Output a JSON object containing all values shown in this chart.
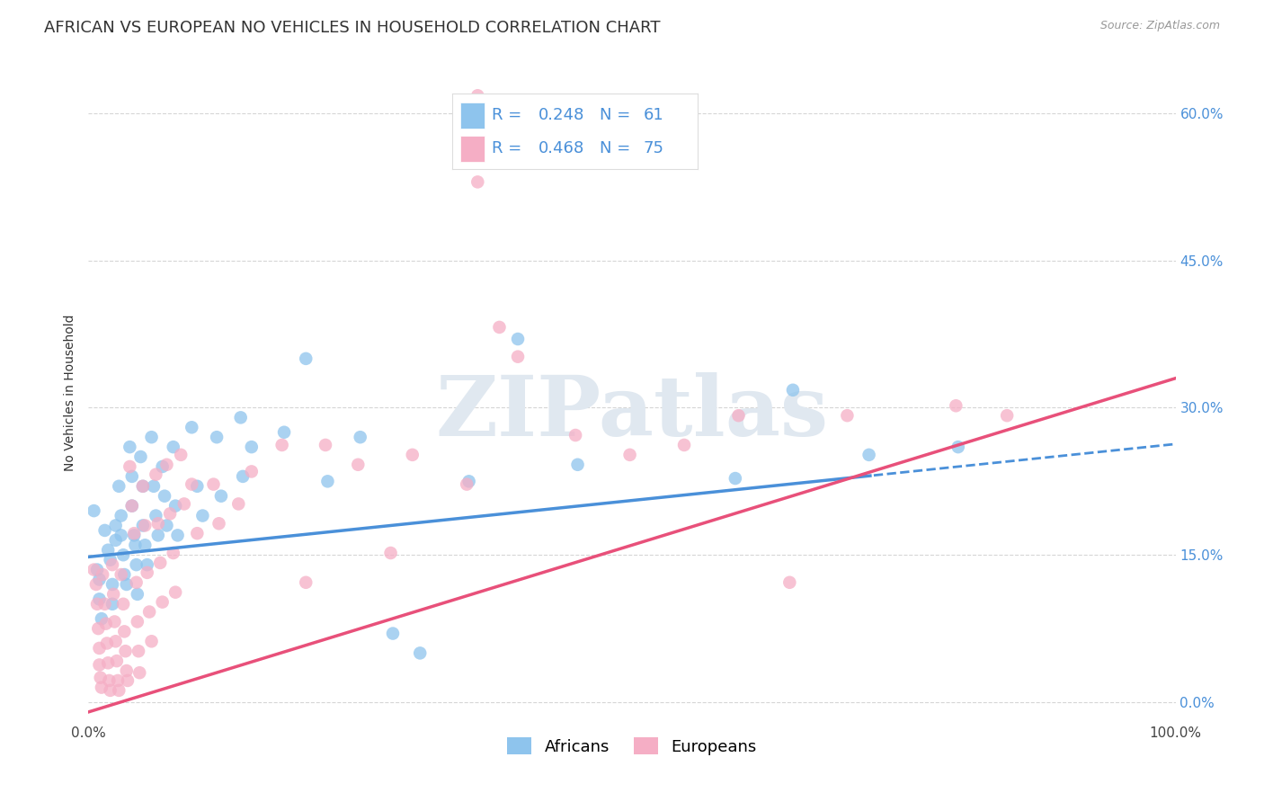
{
  "title": "AFRICAN VS EUROPEAN NO VEHICLES IN HOUSEHOLD CORRELATION CHART",
  "source": "Source: ZipAtlas.com",
  "ylabel": "No Vehicles in Household",
  "xlim": [
    0.0,
    1.0
  ],
  "ylim": [
    -0.02,
    0.65
  ],
  "yticks": [
    0.0,
    0.15,
    0.3,
    0.45,
    0.6
  ],
  "ytick_labels": [
    "0.0%",
    "15.0%",
    "30.0%",
    "45.0%",
    "60.0%"
  ],
  "xticks": [
    0.0,
    0.2,
    0.4,
    0.6,
    0.8,
    1.0
  ],
  "xtick_labels_show": [
    "0.0%",
    "100.0%"
  ],
  "african_color": "#8ec4ed",
  "european_color": "#f5aec5",
  "african_line_color": "#4a90d9",
  "european_line_color": "#e8507a",
  "african_R": 0.248,
  "african_N": 61,
  "european_R": 0.468,
  "european_N": 75,
  "legend_text_color": "#4a90d9",
  "background_color": "#ffffff",
  "grid_color": "#cccccc",
  "title_fontsize": 13,
  "axis_label_fontsize": 10,
  "tick_fontsize": 11,
  "watermark_text": "ZIPatlas",
  "african_scatter": [
    [
      0.005,
      0.195
    ],
    [
      0.008,
      0.135
    ],
    [
      0.01,
      0.125
    ],
    [
      0.01,
      0.105
    ],
    [
      0.012,
      0.085
    ],
    [
      0.015,
      0.175
    ],
    [
      0.018,
      0.155
    ],
    [
      0.02,
      0.145
    ],
    [
      0.022,
      0.12
    ],
    [
      0.022,
      0.1
    ],
    [
      0.025,
      0.18
    ],
    [
      0.025,
      0.165
    ],
    [
      0.028,
      0.22
    ],
    [
      0.03,
      0.19
    ],
    [
      0.03,
      0.17
    ],
    [
      0.032,
      0.15
    ],
    [
      0.033,
      0.13
    ],
    [
      0.035,
      0.12
    ],
    [
      0.038,
      0.26
    ],
    [
      0.04,
      0.23
    ],
    [
      0.04,
      0.2
    ],
    [
      0.042,
      0.17
    ],
    [
      0.043,
      0.16
    ],
    [
      0.044,
      0.14
    ],
    [
      0.045,
      0.11
    ],
    [
      0.048,
      0.25
    ],
    [
      0.05,
      0.22
    ],
    [
      0.05,
      0.18
    ],
    [
      0.052,
      0.16
    ],
    [
      0.054,
      0.14
    ],
    [
      0.058,
      0.27
    ],
    [
      0.06,
      0.22
    ],
    [
      0.062,
      0.19
    ],
    [
      0.064,
      0.17
    ],
    [
      0.068,
      0.24
    ],
    [
      0.07,
      0.21
    ],
    [
      0.072,
      0.18
    ],
    [
      0.078,
      0.26
    ],
    [
      0.08,
      0.2
    ],
    [
      0.082,
      0.17
    ],
    [
      0.095,
      0.28
    ],
    [
      0.1,
      0.22
    ],
    [
      0.105,
      0.19
    ],
    [
      0.118,
      0.27
    ],
    [
      0.122,
      0.21
    ],
    [
      0.14,
      0.29
    ],
    [
      0.142,
      0.23
    ],
    [
      0.15,
      0.26
    ],
    [
      0.18,
      0.275
    ],
    [
      0.2,
      0.35
    ],
    [
      0.22,
      0.225
    ],
    [
      0.25,
      0.27
    ],
    [
      0.28,
      0.07
    ],
    [
      0.305,
      0.05
    ],
    [
      0.35,
      0.225
    ],
    [
      0.45,
      0.242
    ],
    [
      0.595,
      0.228
    ],
    [
      0.648,
      0.318
    ],
    [
      0.718,
      0.252
    ],
    [
      0.8,
      0.26
    ],
    [
      0.395,
      0.37
    ]
  ],
  "european_scatter": [
    [
      0.005,
      0.135
    ],
    [
      0.007,
      0.12
    ],
    [
      0.008,
      0.1
    ],
    [
      0.009,
      0.075
    ],
    [
      0.01,
      0.055
    ],
    [
      0.01,
      0.038
    ],
    [
      0.011,
      0.025
    ],
    [
      0.012,
      0.015
    ],
    [
      0.013,
      0.13
    ],
    [
      0.015,
      0.1
    ],
    [
      0.016,
      0.08
    ],
    [
      0.017,
      0.06
    ],
    [
      0.018,
      0.04
    ],
    [
      0.019,
      0.022
    ],
    [
      0.02,
      0.012
    ],
    [
      0.022,
      0.14
    ],
    [
      0.023,
      0.11
    ],
    [
      0.024,
      0.082
    ],
    [
      0.025,
      0.062
    ],
    [
      0.026,
      0.042
    ],
    [
      0.027,
      0.022
    ],
    [
      0.028,
      0.012
    ],
    [
      0.03,
      0.13
    ],
    [
      0.032,
      0.1
    ],
    [
      0.033,
      0.072
    ],
    [
      0.034,
      0.052
    ],
    [
      0.035,
      0.032
    ],
    [
      0.036,
      0.022
    ],
    [
      0.038,
      0.24
    ],
    [
      0.04,
      0.2
    ],
    [
      0.042,
      0.172
    ],
    [
      0.044,
      0.122
    ],
    [
      0.045,
      0.082
    ],
    [
      0.046,
      0.052
    ],
    [
      0.047,
      0.03
    ],
    [
      0.05,
      0.22
    ],
    [
      0.052,
      0.18
    ],
    [
      0.054,
      0.132
    ],
    [
      0.056,
      0.092
    ],
    [
      0.058,
      0.062
    ],
    [
      0.062,
      0.232
    ],
    [
      0.064,
      0.182
    ],
    [
      0.066,
      0.142
    ],
    [
      0.068,
      0.102
    ],
    [
      0.072,
      0.242
    ],
    [
      0.075,
      0.192
    ],
    [
      0.078,
      0.152
    ],
    [
      0.08,
      0.112
    ],
    [
      0.085,
      0.252
    ],
    [
      0.088,
      0.202
    ],
    [
      0.095,
      0.222
    ],
    [
      0.1,
      0.172
    ],
    [
      0.115,
      0.222
    ],
    [
      0.12,
      0.182
    ],
    [
      0.138,
      0.202
    ],
    [
      0.15,
      0.235
    ],
    [
      0.178,
      0.262
    ],
    [
      0.2,
      0.122
    ],
    [
      0.218,
      0.262
    ],
    [
      0.248,
      0.242
    ],
    [
      0.278,
      0.152
    ],
    [
      0.298,
      0.252
    ],
    [
      0.348,
      0.222
    ],
    [
      0.395,
      0.352
    ],
    [
      0.448,
      0.272
    ],
    [
      0.498,
      0.252
    ],
    [
      0.548,
      0.262
    ],
    [
      0.598,
      0.292
    ],
    [
      0.645,
      0.122
    ],
    [
      0.698,
      0.292
    ],
    [
      0.798,
      0.302
    ],
    [
      0.845,
      0.292
    ],
    [
      0.358,
      0.53
    ],
    [
      0.378,
      0.382
    ],
    [
      0.358,
      0.618
    ]
  ],
  "african_line_intercept": 0.148,
  "african_line_slope": 0.115,
  "european_line_intercept": -0.01,
  "european_line_slope": 0.34,
  "african_dash_cutoff": 0.72
}
